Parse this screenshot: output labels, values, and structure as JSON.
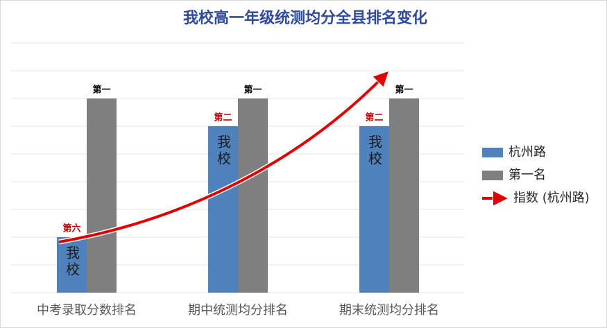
{
  "chart_data": {
    "type": "bar",
    "title": "我校高一年级统测均分全县排名变化",
    "categories": [
      "中考录取分数排名",
      "期中统测均分排名",
      "期末统测均分排名"
    ],
    "series": [
      {
        "name": "杭州路",
        "color": "#4f81bd",
        "values": [
          2,
          6,
          6
        ],
        "rank_labels": [
          "第六",
          "第二",
          "第二"
        ],
        "rank_color": "#c00000",
        "inner_label": "我校"
      },
      {
        "name": "第一名",
        "color": "#7f7f7f",
        "values": [
          7,
          7,
          7
        ],
        "rank_labels": [
          "第一",
          "第一",
          "第一"
        ],
        "rank_color": "#000000"
      }
    ],
    "arrow_legend": "指数 (杭州路)",
    "arrow_color": "#e00000",
    "ylim": [
      0,
      9
    ],
    "yticks": [
      0,
      1,
      2,
      3,
      4,
      5,
      6,
      7,
      8,
      9
    ],
    "grid": true
  }
}
